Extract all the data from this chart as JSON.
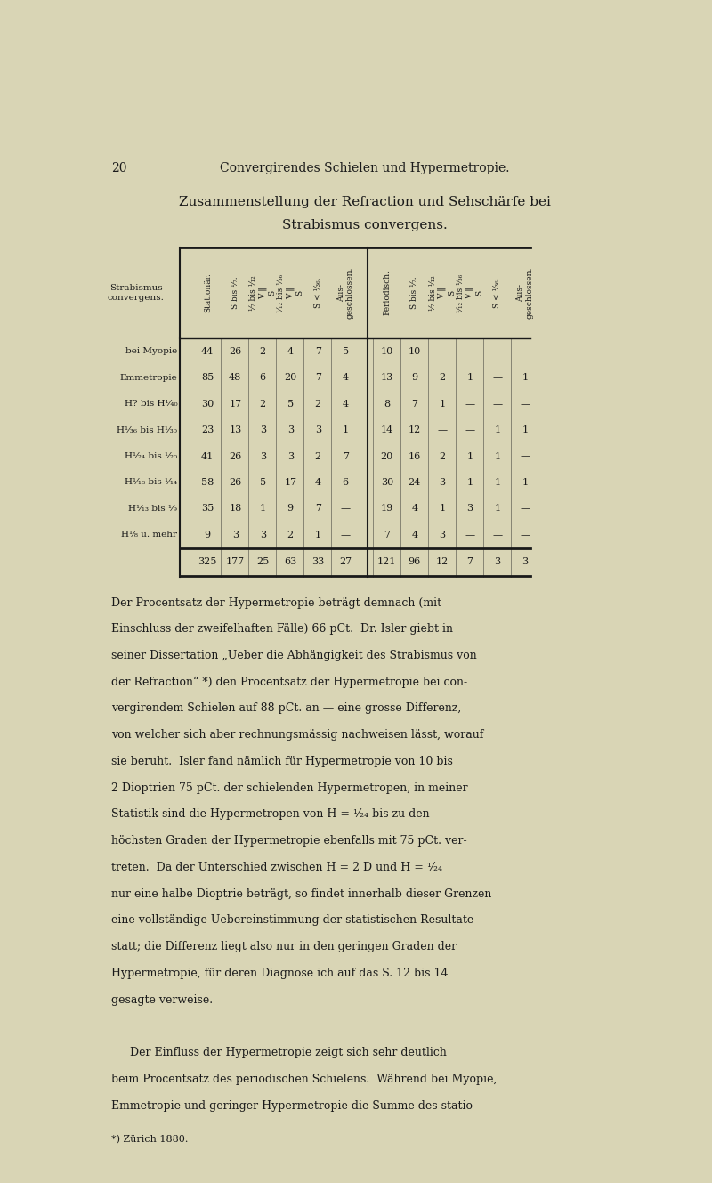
{
  "page_num": "20",
  "page_header": "Convergirendes Schielen und Hypermetropie.",
  "title_line1": "Zusammenstellung der Refraction und Sehschärfe bei",
  "title_line2": "Strabismus convergens.",
  "bg_color": "#d9d5b5",
  "text_color": "#1a1a1a",
  "row_labels": [
    "bei Myopie",
    "Emmetropie",
    "H? bis H¹⁄₄₀",
    "H¹⁄₃₆ bis H¹⁄₃₀",
    "H¹⁄₂₄ bis ¹⁄₂₀",
    "H¹⁄₁₈ bis ¹⁄₁₄",
    "H¹⁄₁₃ bis ¹⁄₉",
    "H¹⁄₈ u. mehr"
  ],
  "data": [
    [
      44,
      26,
      2,
      4,
      7,
      5,
      10,
      10,
      "",
      "",
      "",
      ""
    ],
    [
      85,
      48,
      6,
      20,
      7,
      4,
      13,
      9,
      2,
      1,
      "",
      1
    ],
    [
      30,
      17,
      2,
      5,
      2,
      4,
      8,
      7,
      1,
      "",
      "",
      ""
    ],
    [
      23,
      13,
      3,
      3,
      3,
      1,
      14,
      12,
      "",
      "",
      1,
      1
    ],
    [
      41,
      26,
      3,
      3,
      2,
      7,
      20,
      16,
      2,
      1,
      1,
      ""
    ],
    [
      58,
      26,
      5,
      17,
      4,
      6,
      30,
      24,
      3,
      1,
      1,
      1
    ],
    [
      35,
      18,
      1,
      9,
      7,
      "",
      19,
      4,
      1,
      3,
      1,
      ""
    ],
    [
      9,
      3,
      3,
      2,
      1,
      "",
      7,
      4,
      3,
      "",
      "",
      ""
    ]
  ],
  "totals": [
    325,
    177,
    25,
    63,
    33,
    27,
    121,
    96,
    12,
    7,
    3,
    3
  ],
  "stat_headers": [
    "Stationär.",
    "S bis ¹⁄₇.",
    "¹⁄₇ bis ¹⁄₁₂\nV ‖\nS",
    "¹⁄₁₂ bis ¹⁄₃₆\nV ‖\nS",
    "S < ¹⁄₃₆.",
    "Aus-\ngeschlossen."
  ],
  "period_headers": [
    "Periodisch.",
    "S bis ¹⁄₇.",
    "¹⁄₇ bis ¹⁄₁₂\nV ‖\nS",
    "¹⁄₁₂ bis ¹⁄₃₆\nV ‖\nS",
    "S < ¹⁄₃₆.",
    "Aus-\ngeschlossen."
  ],
  "body_text": [
    "Der Procentsatz der Hypermetropie beträgt demnach (mit",
    "Einschluss der zweifelhaften Fälle) 66 pCt.  Dr. Isler giebt in",
    "seiner Dissertation „Ueber die Abhängigkeit des Strabismus von",
    "der Refraction“ *) den Procentsatz der Hypermetropie bei con-",
    "vergirendem Schielen auf 88 pCt. an — eine grosse Differenz,",
    "von welcher sich aber rechnungsmässig nachweisen lässt, worauf",
    "sie beruht.  Isler fand nämlich für Hypermetropie von 10 bis",
    "2 Dioptrien 75 pCt. der schielenden Hypermetropen, in meiner",
    "Statistik sind die Hypermetropen von H = ¹⁄₂₄ bis zu den",
    "höchsten Graden der Hypermetropie ebenfalls mit 75 pCt. ver-",
    "treten.  Da der Unterschied zwischen H = 2 D und H = ¹⁄₂₄",
    "nur eine halbe Dioptrie beträgt, so findet innerhalb dieser Grenzen",
    "eine vollständige Uebereinstimmung der statistischen Resultate",
    "statt; die Differenz liegt also nur in den geringen Graden der",
    "Hypermetropie, für deren Diagnose ich auf das S. 12 bis 14",
    "gesagte verweise.",
    "",
    "     Der Einfluss der Hypermetropie zeigt sich sehr deutlich",
    "beim Procentsatz des periodischen Schielens.  Während bei Myopie,",
    "Emmetropie und geringer Hypermetropie die Summe des statio-"
  ],
  "footnote": "*) Zürich 1880."
}
